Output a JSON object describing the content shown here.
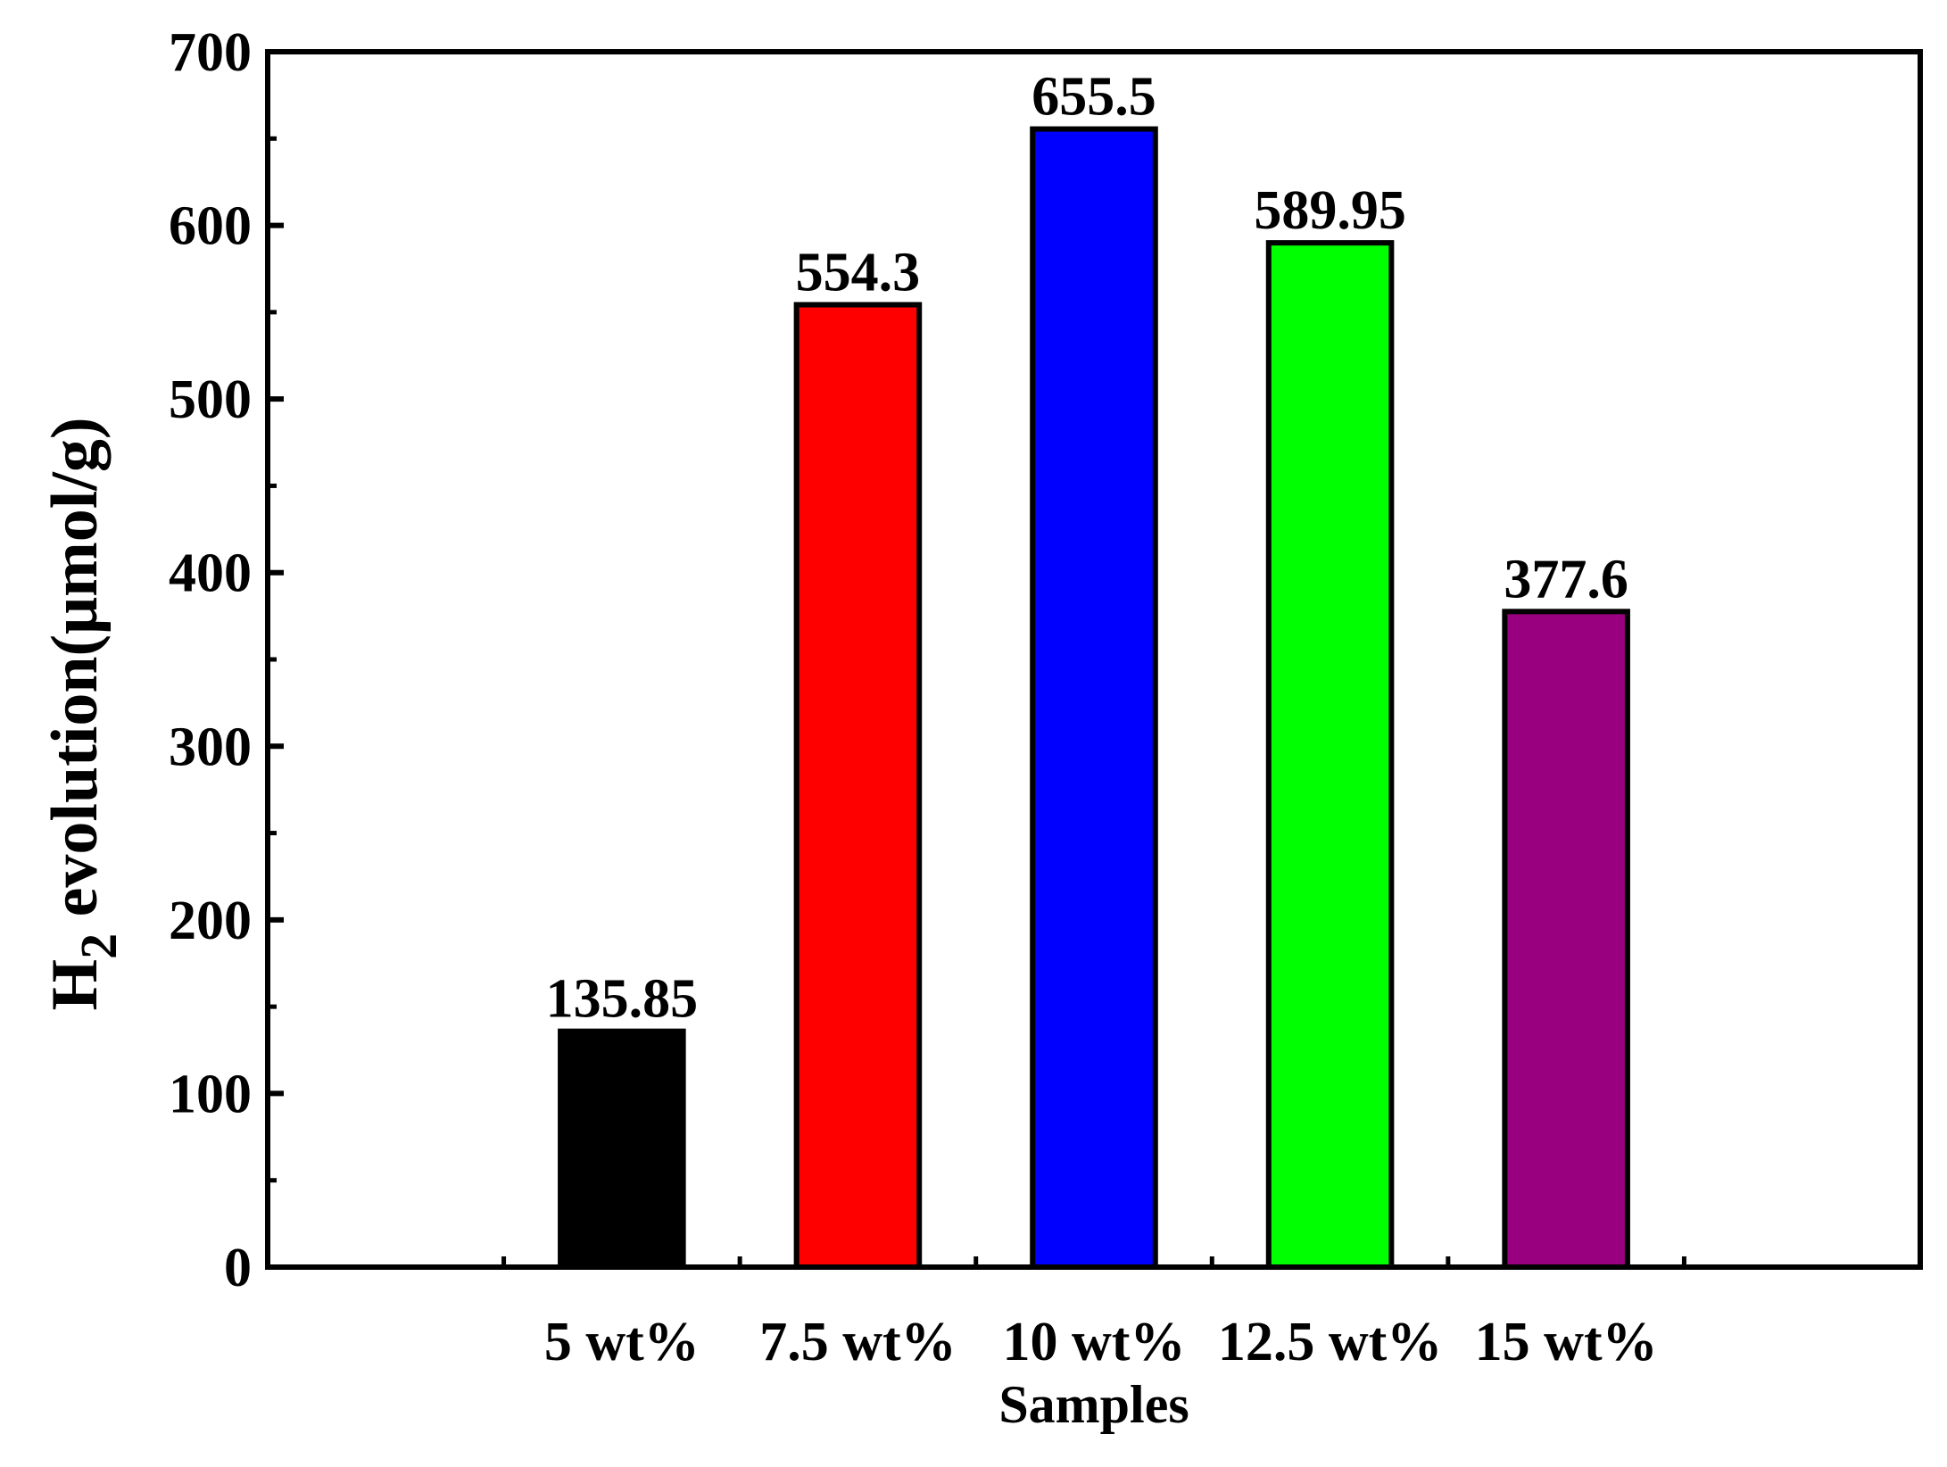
{
  "chart_data": {
    "type": "bar",
    "categories": [
      "5 wt%",
      "7.5 wt%",
      "10 wt%",
      "12.5 wt%",
      "15 wt%"
    ],
    "values": [
      135.85,
      554.3,
      655.5,
      589.95,
      377.6
    ],
    "value_labels": [
      "135.85",
      "554.3",
      "655.5",
      "589.95",
      "377.6"
    ],
    "colors": [
      "#000000",
      "#ff0000",
      "#0000ff",
      "#00ff00",
      "#990080"
    ],
    "xlabel": "Samples",
    "ylabel": {
      "prefix": "H",
      "subscript": "2",
      "suffix": " evolution(μmol/g)"
    },
    "ylim": [
      0,
      700
    ],
    "yticks": [
      0,
      100,
      200,
      300,
      400,
      500,
      600,
      700
    ],
    "grid": false,
    "legend": "none"
  }
}
